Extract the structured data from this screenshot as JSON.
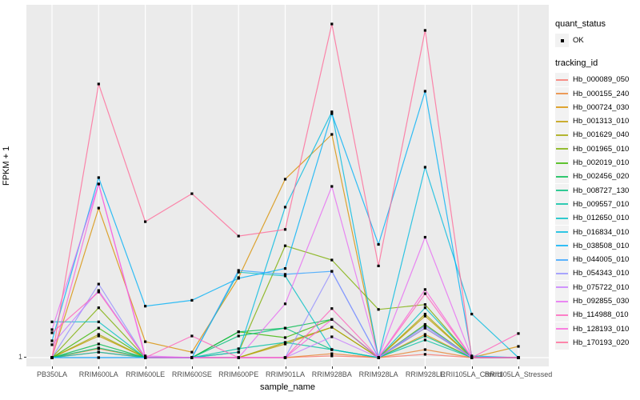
{
  "figure": {
    "y_axis_title": "FPKM + 1",
    "x_axis_title": "sample_name",
    "y_tick_label": "1"
  },
  "legend": {
    "quant_status_title": "quant_status",
    "quant_status_item": "OK",
    "tracking_title": "tracking_id"
  },
  "chart_data": {
    "type": "line",
    "title": "",
    "xlabel": "sample_name",
    "ylabel": "FPKM + 1",
    "y_scale": "log10",
    "y_tick_labels": [
      "1"
    ],
    "grid": "major-only, white on grey panel",
    "legend_position": "right",
    "point_marker": "black-square",
    "panel_bg": "#EBEBEB",
    "grid_color": "#FFFFFF",
    "x_categories": [
      "PB350LA",
      "RRIM600LA",
      "RRIM600LE",
      "RRIM600SE",
      "RRIM600PE",
      "RRIM901LA",
      "RRIM928BA",
      "RRIM928LA",
      "RRIM928LE",
      "RRII105LA_Control",
      "RRII105LA_Stressed"
    ],
    "series": [
      {
        "name": "Hb_000089_050",
        "color": "#F8766D",
        "values": [
          1,
          1.17,
          1,
          1,
          1,
          1,
          1.05,
          1,
          1.1,
          1,
          1
        ]
      },
      {
        "name": "Hb_000155_240",
        "color": "#EA8331",
        "values": [
          1,
          1.29,
          1,
          1,
          1,
          1,
          1.12,
          1,
          1.26,
          1,
          1
        ]
      },
      {
        "name": "Hb_000724_030",
        "color": "#D89000",
        "values": [
          1,
          74,
          1.58,
          1.17,
          10,
          170,
          616,
          1,
          1.95,
          1,
          1.38
        ]
      },
      {
        "name": "Hb_001313_010",
        "color": "#C09B00",
        "values": [
          1,
          1.86,
          1,
          1,
          1,
          1.48,
          2.4,
          1,
          3.3,
          1,
          1
        ]
      },
      {
        "name": "Hb_001629_040",
        "color": "#A3A500",
        "values": [
          1,
          1.95,
          1,
          1,
          1,
          1.55,
          2.4,
          1,
          3.5,
          1,
          1
        ]
      },
      {
        "name": "Hb_001965_010",
        "color": "#7CAE00",
        "values": [
          1,
          4.2,
          1,
          1,
          1.17,
          25,
          16.6,
          4,
          4.6,
          1,
          1
        ]
      },
      {
        "name": "Hb_002019_010",
        "color": "#39B600",
        "values": [
          1,
          2.34,
          1,
          1,
          2.1,
          1.78,
          3,
          1,
          2.6,
          1,
          1
        ]
      },
      {
        "name": "Hb_002456_020",
        "color": "#00BB4E",
        "values": [
          1,
          1.48,
          1,
          1,
          2.1,
          2.34,
          3,
          1,
          2.34,
          1,
          1
        ]
      },
      {
        "name": "Hb_008727_130",
        "color": "#00BF7D",
        "values": [
          1,
          1.32,
          1,
          1,
          1.86,
          2.34,
          1.26,
          1,
          1.86,
          1,
          1
        ]
      },
      {
        "name": "Hb_009557_010",
        "color": "#00C1A3",
        "values": [
          1,
          1.17,
          1,
          1,
          1.29,
          1.55,
          1.26,
          1,
          1.66,
          1,
          1
        ]
      },
      {
        "name": "Hb_012650_010",
        "color": "#00BFC4",
        "values": [
          2.8,
          2.8,
          1,
          1,
          11.7,
          10.5,
          1.26,
          1,
          4.2,
          1,
          1
        ]
      },
      {
        "name": "Hb_016834_010",
        "color": "#00BAE0",
        "values": [
          1,
          1,
          1,
          1,
          1.17,
          76,
          1180,
          1,
          240,
          3.5,
          1
        ]
      },
      {
        "name": "Hb_038508_010",
        "color": "#00B0F6",
        "values": [
          1.62,
          178,
          4.4,
          5.2,
          9.8,
          13,
          1120,
          26,
          2140,
          1.05,
          1
        ]
      },
      {
        "name": "Hb_044005_010",
        "color": "#35A2FF",
        "values": [
          1,
          1,
          1,
          1,
          12.3,
          11,
          12,
          1,
          2.5,
          1,
          1
        ]
      },
      {
        "name": "Hb_054343_010",
        "color": "#9590FF",
        "values": [
          1,
          8.3,
          1,
          1,
          1,
          1,
          12,
          1,
          2.5,
          1,
          1
        ]
      },
      {
        "name": "Hb_075722_010",
        "color": "#C77CFF",
        "values": [
          1.45,
          6.9,
          1,
          1,
          1,
          1,
          1.82,
          1,
          2.34,
          1,
          1
        ]
      },
      {
        "name": "Hb_092855_030",
        "color": "#E76BF3",
        "values": [
          2.24,
          148,
          1.05,
          1,
          1,
          4.7,
          138,
          1,
          32,
          1,
          1
        ]
      },
      {
        "name": "Hb_114988_010",
        "color": "#FF62BC",
        "values": [
          2.04,
          6.6,
          1,
          1.86,
          1,
          1,
          4.1,
          1,
          6.3,
          1,
          2
        ]
      },
      {
        "name": "Hb_128193_010",
        "color": "#FA62DB",
        "values": [
          1,
          148,
          1,
          1,
          1,
          1,
          3,
          1,
          7.1,
          1,
          1
        ]
      },
      {
        "name": "Hb_170193_020",
        "color": "#FF6A98",
        "values": [
          1,
          2630,
          50,
          112,
          33,
          40,
          14800,
          14,
          12300,
          1,
          1
        ]
      }
    ]
  }
}
